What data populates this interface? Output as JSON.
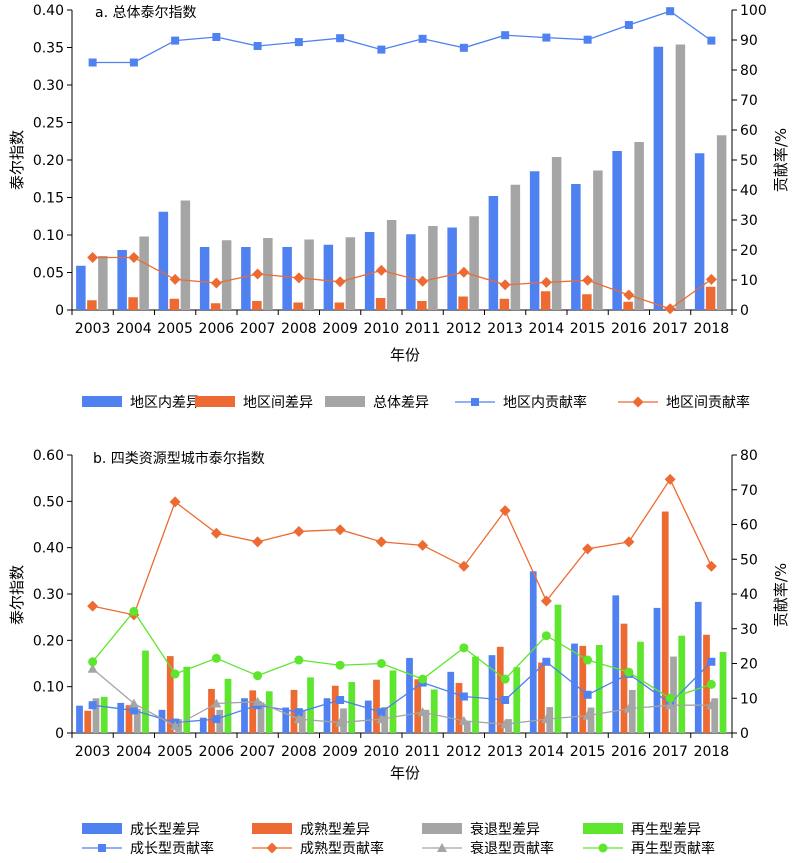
{
  "chart_data": [
    {
      "type": "bar",
      "title": "a. 总体泰尔指数",
      "xlabel": "年份",
      "ylabel": "泰尔指数",
      "y2label": "贡献率/%",
      "categories": [
        "2003",
        "2004",
        "2005",
        "2006",
        "2007",
        "2008",
        "2009",
        "2010",
        "2011",
        "2012",
        "2013",
        "2014",
        "2015",
        "2016",
        "2017",
        "2018"
      ],
      "ylim": [
        0,
        0.4
      ],
      "y_ticks": [
        "0",
        "0.05",
        "0.10",
        "0.15",
        "0.20",
        "0.25",
        "0.30",
        "0.35",
        "0.40"
      ],
      "y2lim": [
        0,
        100
      ],
      "y2_ticks": [
        "0",
        "10",
        "20",
        "30",
        "40",
        "50",
        "60",
        "70",
        "80",
        "90",
        "100"
      ],
      "legend_position": "bottom",
      "bar_series": [
        {
          "name": "地区内差异",
          "color": "#4f81f0",
          "values": [
            0.059,
            0.08,
            0.131,
            0.084,
            0.084,
            0.084,
            0.087,
            0.104,
            0.101,
            0.11,
            0.152,
            0.185,
            0.168,
            0.212,
            0.351,
            0.209
          ]
        },
        {
          "name": "地区间差异",
          "color": "#ed6b32",
          "values": [
            0.013,
            0.017,
            0.015,
            0.009,
            0.012,
            0.01,
            0.01,
            0.016,
            0.012,
            0.018,
            0.015,
            0.025,
            0.021,
            0.011,
            0.003,
            0.031
          ]
        },
        {
          "name": "总体差异",
          "color": "#a5a5a5",
          "values": [
            0.072,
            0.098,
            0.146,
            0.093,
            0.096,
            0.094,
            0.097,
            0.12,
            0.112,
            0.125,
            0.167,
            0.204,
            0.186,
            0.224,
            0.354,
            0.233
          ]
        }
      ],
      "line_series": [
        {
          "name": "地区内贡献率",
          "color": "#4f81f0",
          "marker": "square",
          "values": [
            82.5,
            82.5,
            89.8,
            91.0,
            88.0,
            89.3,
            90.6,
            86.8,
            90.4,
            87.4,
            91.6,
            90.8,
            90.1,
            95.0,
            99.6,
            89.8
          ]
        },
        {
          "name": "地区间贡献率",
          "color": "#ed6b32",
          "marker": "diamond",
          "values": [
            17.5,
            17.5,
            10.2,
            9.0,
            12.0,
            10.7,
            9.4,
            13.2,
            9.6,
            12.6,
            8.4,
            9.2,
            9.9,
            5.0,
            0.4,
            10.2
          ]
        }
      ]
    },
    {
      "type": "bar",
      "title": "b. 四类资源型城市泰尔指数",
      "xlabel": "年份",
      "ylabel": "泰尔指数",
      "y2label": "贡献率/%",
      "categories": [
        "2003",
        "2004",
        "2005",
        "2006",
        "2007",
        "2008",
        "2009",
        "2010",
        "2011",
        "2012",
        "2013",
        "2014",
        "2015",
        "2016",
        "2017",
        "2018"
      ],
      "ylim": [
        0,
        0.6
      ],
      "y_ticks": [
        "0",
        "0.10",
        "0.20",
        "0.30",
        "0.40",
        "0.50",
        "0.60"
      ],
      "y2lim": [
        0,
        80
      ],
      "y2_ticks": [
        "0",
        "10",
        "20",
        "30",
        "40",
        "50",
        "60",
        "70",
        "80"
      ],
      "legend_position": "bottom",
      "bar_series": [
        {
          "name": "成长型差异",
          "color": "#4f81f0",
          "values": [
            0.059,
            0.065,
            0.05,
            0.033,
            0.075,
            0.055,
            0.075,
            0.07,
            0.162,
            0.132,
            0.168,
            0.349,
            0.193,
            0.297,
            0.27,
            0.283
          ]
        },
        {
          "name": "成熟型差异",
          "color": "#ed6b32",
          "values": [
            0.048,
            0.06,
            0.166,
            0.095,
            0.092,
            0.093,
            0.102,
            0.115,
            0.116,
            0.108,
            0.186,
            0.152,
            0.188,
            0.236,
            0.478,
            0.212
          ]
        },
        {
          "name": "衰退型差异",
          "color": "#a5a5a5",
          "values": [
            0.075,
            0.052,
            0.03,
            0.05,
            0.066,
            0.05,
            0.053,
            0.056,
            0.05,
            0.025,
            0.03,
            0.056,
            0.055,
            0.093,
            0.165,
            0.075
          ]
        },
        {
          "name": "再生型差异",
          "color": "#5ee62e",
          "values": [
            0.078,
            0.178,
            0.143,
            0.117,
            0.09,
            0.12,
            0.11,
            0.135,
            0.094,
            0.165,
            0.142,
            0.277,
            0.19,
            0.197,
            0.21,
            0.175
          ]
        }
      ],
      "line_series": [
        {
          "name": "成长型贡献率",
          "color": "#4f81f0",
          "marker": "square",
          "values": [
            8.0,
            6.5,
            3.0,
            4.0,
            8.0,
            6.0,
            9.5,
            6.0,
            14.5,
            10.5,
            9.5,
            20.5,
            11.0,
            17.0,
            8.5,
            20.5
          ]
        },
        {
          "name": "成熟型贡献率",
          "color": "#ed6b32",
          "marker": "diamond",
          "values": [
            36.5,
            34.0,
            66.5,
            57.5,
            55.0,
            58.0,
            58.5,
            55.0,
            54.0,
            48.0,
            64.0,
            38.0,
            53.0,
            55.0,
            73.0,
            48.0
          ]
        },
        {
          "name": "衰退型贡献率",
          "color": "#a5a5a5",
          "marker": "triangle",
          "values": [
            18.5,
            8.5,
            2.0,
            8.5,
            9.0,
            4.0,
            3.0,
            4.0,
            6.0,
            3.5,
            2.5,
            4.0,
            5.0,
            7.0,
            8.0,
            8.0
          ]
        },
        {
          "name": "再生型贡献率",
          "color": "#5ee62e",
          "marker": "circle",
          "values": [
            20.5,
            35.0,
            17.0,
            21.5,
            16.5,
            21.0,
            19.5,
            20.0,
            15.5,
            24.5,
            15.5,
            28.0,
            21.0,
            17.5,
            10.0,
            14.0
          ]
        }
      ]
    }
  ]
}
